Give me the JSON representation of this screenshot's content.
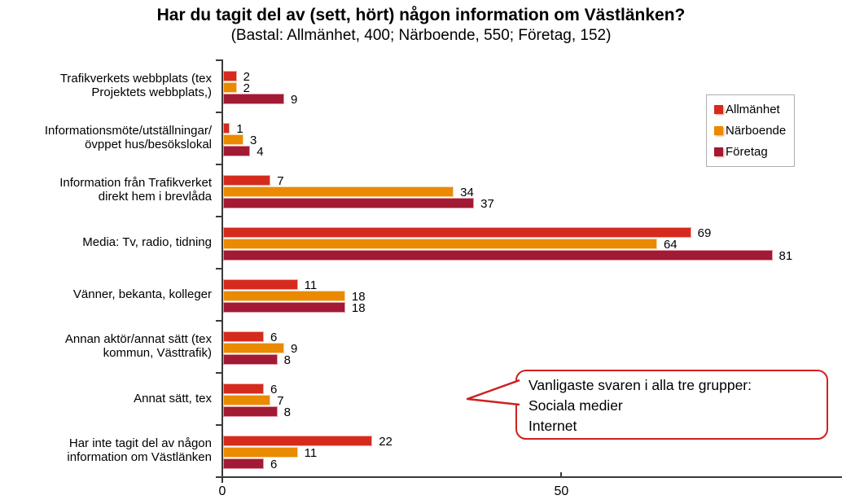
{
  "title": "Har du tagit del av (sett, hört) någon information om Västlänken?",
  "subtitle": "(Bastal: Allmänhet, 400; Närboende, 550; Företag, 152)",
  "colors": {
    "allmanhet": "#d52b1e",
    "narboende": "#e98a00",
    "foretag": "#a21a33",
    "axis": "#3a3a3a",
    "callout_border": "#cf2020",
    "legend_border": "#aeaeae"
  },
  "callout": {
    "lines": [
      "Vanligaste svaren i alla tre grupper:",
      "Sociala medier",
      "Internet"
    ]
  },
  "chart_data": {
    "type": "bar",
    "orientation": "horizontal",
    "title": "Har du tagit del av (sett, hört) någon information om Västlänken?",
    "subtitle": "(Bastal: Allmänhet, 400; Närboende, 550; Företag, 152)",
    "categories": [
      "Trafikverkets webbplats (tex\nProjektets webbplats,)",
      "Informationsmöte/utställningar/\növppet hus/besökslokal",
      "Information från Trafikverket\ndirekt hem i brevlåda",
      "Media: Tv, radio, tidning",
      "Vänner, bekanta, kolleger",
      "Annan aktör/annat sätt (tex\nkommun, Västtrafik)",
      "Annat sätt, tex",
      "Har inte tagit del av någon\ninformation om Västlänken"
    ],
    "series": [
      {
        "name": "Allmänhet",
        "color": "#d52b1e",
        "border_color": "#f0a89d",
        "values": [
          2,
          1,
          7,
          69,
          11,
          6,
          6,
          22
        ]
      },
      {
        "name": "Närboende",
        "color": "#e98a00",
        "border_color": "#f7d3a0",
        "values": [
          2,
          3,
          34,
          64,
          18,
          9,
          7,
          11
        ]
      },
      {
        "name": "Företag",
        "color": "#a21a33",
        "border_color": "#e09aa8",
        "values": [
          9,
          4,
          37,
          81,
          18,
          8,
          8,
          6
        ]
      }
    ],
    "value_labels": true,
    "xlabel": "",
    "ylabel": "",
    "axis": {
      "x_ticks": [
        0,
        50
      ],
      "x_min": 0,
      "x_max": 91.5
    },
    "grid": false,
    "legend_position": "top-right"
  }
}
